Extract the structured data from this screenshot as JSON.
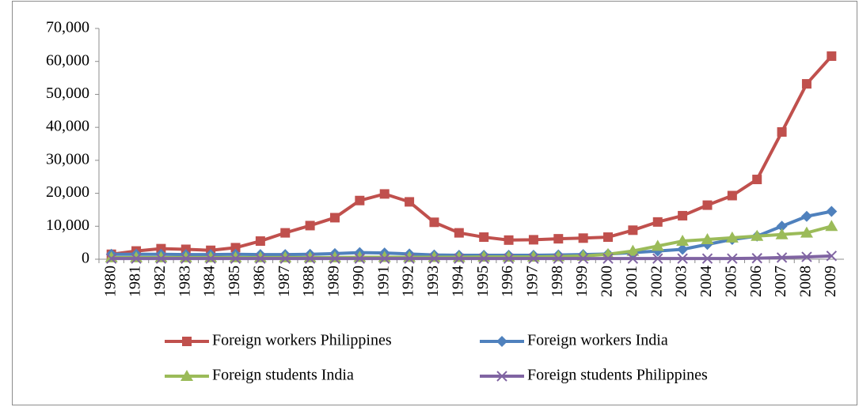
{
  "chart_data": {
    "type": "line",
    "categories": [
      "1980",
      "1981",
      "1982",
      "1983",
      "1984",
      "1985",
      "1986",
      "1987",
      "1988",
      "1989",
      "1990",
      "1991",
      "1992",
      "1993",
      "1994",
      "1995",
      "1996",
      "1997",
      "1998",
      "1999",
      "2000",
      "2001",
      "2002",
      "2003",
      "2004",
      "2005",
      "2006",
      "2007",
      "2008",
      "2009"
    ],
    "series": [
      {
        "name": "Foreign workers Philippines",
        "color": "#c0504d",
        "marker": "square",
        "values": [
          1500,
          2500,
          3200,
          3000,
          2700,
          3500,
          5500,
          8000,
          10200,
          12600,
          17800,
          19800,
          17400,
          11200,
          8000,
          6700,
          5800,
          5900,
          6200,
          6400,
          6700,
          8800,
          11300,
          13200,
          16400,
          19300,
          24200,
          38600,
          53200,
          61600
        ]
      },
      {
        "name": "Foreign workers India",
        "color": "#4f81bd",
        "marker": "diamond",
        "values": [
          1500,
          1500,
          1500,
          1400,
          1400,
          1500,
          1400,
          1400,
          1500,
          1700,
          2000,
          1900,
          1600,
          1300,
          1200,
          1200,
          1200,
          1200,
          1300,
          1400,
          1600,
          2000,
          2500,
          3000,
          4500,
          6000,
          7000,
          10000,
          13000,
          14500
        ]
      },
      {
        "name": "Foreign students India",
        "color": "#9bbb59",
        "marker": "triangle",
        "values": [
          500,
          500,
          500,
          500,
          500,
          500,
          500,
          500,
          500,
          500,
          600,
          600,
          600,
          600,
          600,
          700,
          700,
          700,
          800,
          1000,
          1500,
          2500,
          4000,
          5500,
          6000,
          6500,
          7000,
          7500,
          8000,
          10000
        ]
      },
      {
        "name": "Foreign students Philippines",
        "color": "#8064a2",
        "marker": "x",
        "values": [
          200,
          200,
          200,
          200,
          200,
          200,
          200,
          200,
          200,
          200,
          200,
          200,
          200,
          200,
          200,
          200,
          200,
          200,
          200,
          200,
          200,
          200,
          200,
          200,
          200,
          200,
          300,
          500,
          700,
          1000
        ]
      }
    ],
    "ylim": [
      0,
      70000
    ],
    "yticks": [
      0,
      {
        "value": 10000,
        "label": "10,000"
      },
      {
        "value": 20000,
        "label": "20,000"
      },
      {
        "value": 30000,
        "label": "30,000"
      },
      {
        "value": 40000,
        "label": "40,000"
      },
      {
        "value": 50000,
        "label": "50,000"
      },
      {
        "value": 60000,
        "label": "60,000"
      },
      {
        "value": 70000,
        "label": "70,000"
      }
    ],
    "legend": "bottom"
  }
}
